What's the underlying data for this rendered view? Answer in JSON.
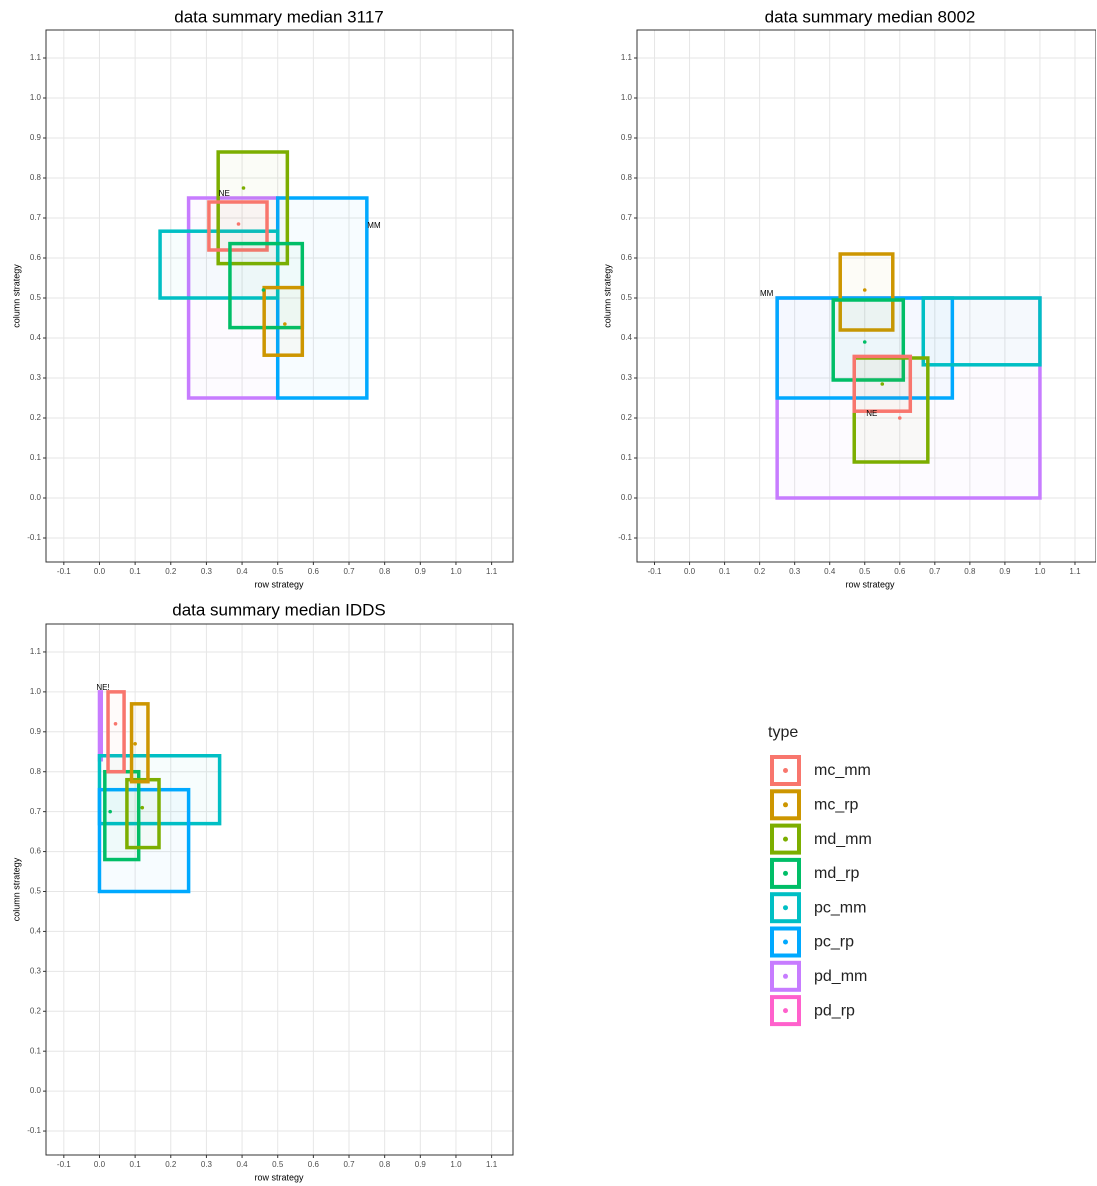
{
  "chart_data": [
    {
      "type": "rect",
      "title": "data summary median 3117",
      "x_label": "row strategy",
      "y_label": "column strategy",
      "xlim": [
        -0.15,
        1.16
      ],
      "ylim": [
        -0.16,
        1.17
      ],
      "xticks": [
        -0.1,
        {
          "value": 0,
          "label": "0.0"
        },
        0.1,
        0.2,
        0.3,
        0.4,
        0.5,
        0.6,
        0.7,
        0.8,
        0.9,
        {
          "value": 1,
          "label": "1.0"
        },
        1.1
      ],
      "yticks": [
        -0.1,
        {
          "value": 0,
          "label": "0.0"
        },
        0.1,
        0.2,
        0.3,
        0.4,
        0.5,
        0.6,
        0.7,
        0.8,
        0.9,
        {
          "value": 1,
          "label": "1.0"
        },
        1.1
      ],
      "grid": true,
      "series": [
        {
          "name": "pd_mm",
          "xmin": 0.25,
          "xmax": 0.5,
          "ymin": 0.25,
          "ymax": 0.75
        },
        {
          "name": "pc_rp",
          "xmin": 0.5,
          "xmax": 0.75,
          "ymin": 0.25,
          "ymax": 0.75
        },
        {
          "name": "pc_mm",
          "xmin": 0.17,
          "xmax": 0.5,
          "ymin": 0.5,
          "ymax": 0.667
        },
        {
          "name": "md_mm",
          "xmin": 0.333,
          "xmax": 0.527,
          "ymin": 0.586,
          "ymax": 0.865,
          "x": 0.404,
          "y": 0.775
        },
        {
          "name": "mc_mm",
          "xmin": 0.307,
          "xmax": 0.47,
          "ymin": 0.62,
          "ymax": 0.74,
          "x": 0.39,
          "y": 0.685
        },
        {
          "name": "md_rp",
          "xmin": 0.366,
          "xmax": 0.569,
          "ymin": 0.426,
          "ymax": 0.636,
          "x": 0.46,
          "y": 0.52
        },
        {
          "name": "mc_rp",
          "xmin": 0.462,
          "xmax": 0.569,
          "ymin": 0.357,
          "ymax": 0.526,
          "x": 0.52,
          "y": 0.435
        }
      ],
      "annotations": [
        {
          "text": "NE",
          "x": 0.35,
          "y": 0.76
        },
        {
          "text": "MM",
          "x": 0.77,
          "y": 0.68
        }
      ]
    },
    {
      "type": "rect",
      "title": "data summary median 8002",
      "x_label": "row strategy",
      "y_label": "column strategy",
      "xlim": [
        -0.15,
        1.16
      ],
      "ylim": [
        -0.16,
        1.17
      ],
      "xticks": [
        -0.1,
        {
          "value": 0,
          "label": "0.0"
        },
        0.1,
        0.2,
        0.3,
        0.4,
        0.5,
        0.6,
        0.7,
        0.8,
        0.9,
        {
          "value": 1,
          "label": "1.0"
        },
        1.1
      ],
      "yticks": [
        -0.1,
        {
          "value": 0,
          "label": "0.0"
        },
        0.1,
        0.2,
        0.3,
        0.4,
        0.5,
        0.6,
        0.7,
        0.8,
        0.9,
        {
          "value": 1,
          "label": "1.0"
        },
        1.1
      ],
      "grid": true,
      "series": [
        {
          "name": "pd_mm",
          "xmin": 0.25,
          "xmax": 1.0,
          "ymin": 0.0,
          "ymax": 0.5
        },
        {
          "name": "pc_rp",
          "xmin": 0.25,
          "xmax": 0.75,
          "ymin": 0.25,
          "ymax": 0.5
        },
        {
          "name": "pc_mm",
          "xmin": 0.667,
          "xmax": 1.0,
          "ymin": 0.333,
          "ymax": 0.5
        },
        {
          "name": "mc_rp",
          "xmin": 0.43,
          "xmax": 0.58,
          "ymin": 0.42,
          "ymax": 0.61,
          "x": 0.5,
          "y": 0.52
        },
        {
          "name": "md_rp",
          "xmin": 0.41,
          "xmax": 0.61,
          "ymin": 0.295,
          "ymax": 0.495,
          "x": 0.5,
          "y": 0.39
        },
        {
          "name": "md_mm",
          "xmin": 0.47,
          "xmax": 0.68,
          "ymin": 0.09,
          "ymax": 0.35,
          "x": 0.55,
          "y": 0.285
        },
        {
          "name": "mc_mm",
          "xmin": 0.47,
          "xmax": 0.63,
          "ymin": 0.217,
          "ymax": 0.354,
          "x": 0.6,
          "y": 0.2
        }
      ],
      "annotations": [
        {
          "text": "MM",
          "x": 0.22,
          "y": 0.51
        },
        {
          "text": "NE",
          "x": 0.52,
          "y": 0.21
        }
      ]
    },
    {
      "type": "rect",
      "title": "data summary median IDDS",
      "x_label": "row strategy",
      "y_label": "column strategy",
      "xlim": [
        -0.15,
        1.16
      ],
      "ylim": [
        -0.16,
        1.17
      ],
      "xticks": [
        -0.1,
        {
          "value": 0,
          "label": "0.0"
        },
        0.1,
        0.2,
        0.3,
        0.4,
        0.5,
        0.6,
        0.7,
        0.8,
        0.9,
        {
          "value": 1,
          "label": "1.0"
        },
        1.1
      ],
      "yticks": [
        -0.1,
        {
          "value": 0,
          "label": "0.0"
        },
        0.1,
        0.2,
        0.3,
        0.4,
        0.5,
        0.6,
        0.7,
        0.8,
        0.9,
        {
          "value": 1,
          "label": "1.0"
        },
        1.1
      ],
      "grid": true,
      "series": [
        {
          "name": "pd_mm",
          "xmin": 0.0,
          "xmax": 0.005,
          "ymin": 0.83,
          "ymax": 1.0
        },
        {
          "name": "pc_mm",
          "xmin": 0.0,
          "xmax": 0.337,
          "ymin": 0.67,
          "ymax": 0.84
        },
        {
          "name": "pc_rp",
          "xmin": 0.0,
          "xmax": 0.25,
          "ymin": 0.5,
          "ymax": 0.755
        },
        {
          "name": "md_rp",
          "xmin": 0.015,
          "xmax": 0.11,
          "ymin": 0.58,
          "ymax": 0.8,
          "x": 0.03,
          "y": 0.7
        },
        {
          "name": "md_mm",
          "xmin": 0.077,
          "xmax": 0.167,
          "ymin": 0.61,
          "ymax": 0.78,
          "x": 0.12,
          "y": 0.71
        },
        {
          "name": "mc_mm",
          "xmin": 0.024,
          "xmax": 0.069,
          "ymin": 0.8,
          "ymax": 1.0,
          "x": 0.045,
          "y": 0.92
        },
        {
          "name": "mc_rp",
          "xmin": 0.09,
          "xmax": 0.136,
          "ymin": 0.775,
          "ymax": 0.97,
          "x": 0.1,
          "y": 0.87
        }
      ],
      "annotations": [
        {
          "text": "NE!",
          "x": 0.01,
          "y": 1.01
        }
      ]
    }
  ],
  "legend": {
    "title": "type",
    "items": [
      {
        "name": "mc_mm",
        "color": "#F8766D"
      },
      {
        "name": "mc_rp",
        "color": "#CD9600"
      },
      {
        "name": "md_mm",
        "color": "#7CAE00"
      },
      {
        "name": "md_rp",
        "color": "#00BE67"
      },
      {
        "name": "pc_mm",
        "color": "#00BFC4"
      },
      {
        "name": "pc_rp",
        "color": "#00A9FF"
      },
      {
        "name": "pd_mm",
        "color": "#C77CFF"
      },
      {
        "name": "pd_rp",
        "color": "#FF61CC"
      }
    ]
  }
}
